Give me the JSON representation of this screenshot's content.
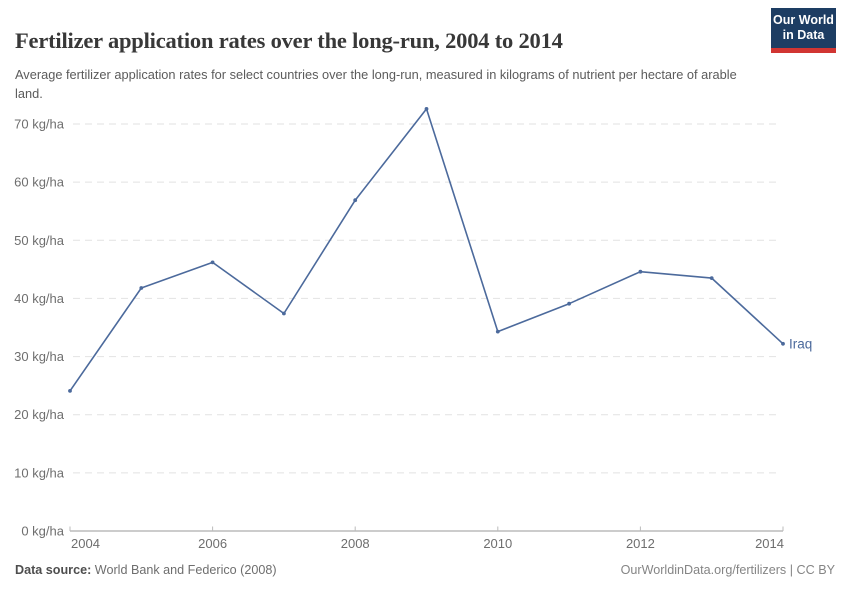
{
  "header": {
    "title": "Fertilizer application rates over the long-run, 2004 to 2014",
    "subtitle": "Average fertilizer application rates for select countries over the long-run, measured in kilograms of nutrient per hectare of arable land.",
    "logo": {
      "line1": "Our World",
      "line2": "in Data"
    }
  },
  "chart_data": {
    "type": "line",
    "x": [
      2004,
      2005,
      2006,
      2007,
      2008,
      2009,
      2010,
      2011,
      2012,
      2013,
      2014
    ],
    "series": [
      {
        "name": "Iraq",
        "values": [
          24.1,
          41.8,
          46.2,
          37.4,
          56.9,
          72.6,
          34.3,
          39.1,
          44.6,
          43.5,
          32.2
        ],
        "color": "#4c6a9c"
      }
    ],
    "title": "Fertilizer application rates over the long-run, 2004 to 2014",
    "xlabel": "",
    "ylabel": "kg/ha",
    "ylim": [
      0,
      75
    ],
    "xlim": [
      2004,
      2014
    ],
    "yticks": [
      0,
      10,
      20,
      30,
      40,
      50,
      60,
      70
    ],
    "ytick_suffix": " kg/ha",
    "xticks": [
      2004,
      2006,
      2008,
      2010,
      2012,
      2014
    ],
    "grid": "horizontal-dashed",
    "legend_position": "end-of-line-label",
    "end_label": "Iraq"
  },
  "colors": {
    "line": "#4c6a9c",
    "grid": "#e2e2e2",
    "axis": "#999999",
    "tick": "#bbbbbb",
    "tick_label": "#6e6e6e",
    "logo_bg": "#1d3d63",
    "logo_accent": "#d13532"
  },
  "footer": {
    "source_label": "Data source:",
    "source_value": " World Bank and Federico (2008)",
    "link": "OurWorldinData.org/fertilizers",
    "separator": " | ",
    "license": "CC BY"
  }
}
